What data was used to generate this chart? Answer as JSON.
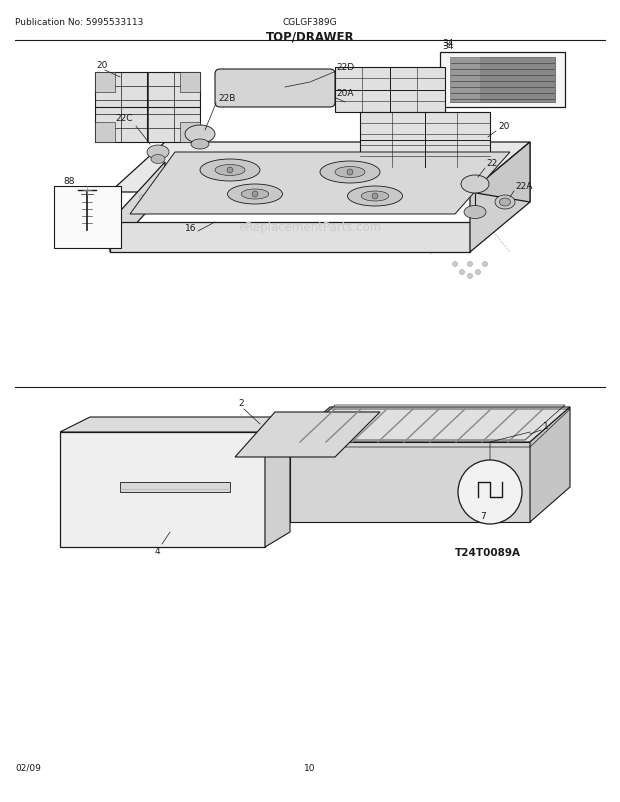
{
  "title": "TOP/DRAWER",
  "pub_no": "Publication No: 5995533113",
  "model": "CGLGF389G",
  "diagram_code": "T24T0089A",
  "date": "02/09",
  "page": "10",
  "watermark": "eReplacementParts.com",
  "bg_color": "#ffffff",
  "line_color": "#1a1a1a",
  "gray_light": "#e8e8e8",
  "gray_mid": "#cccccc",
  "gray_dark": "#aaaaaa",
  "label_fs": 6.5,
  "header_fs": 6.5,
  "title_fs": 8.5
}
